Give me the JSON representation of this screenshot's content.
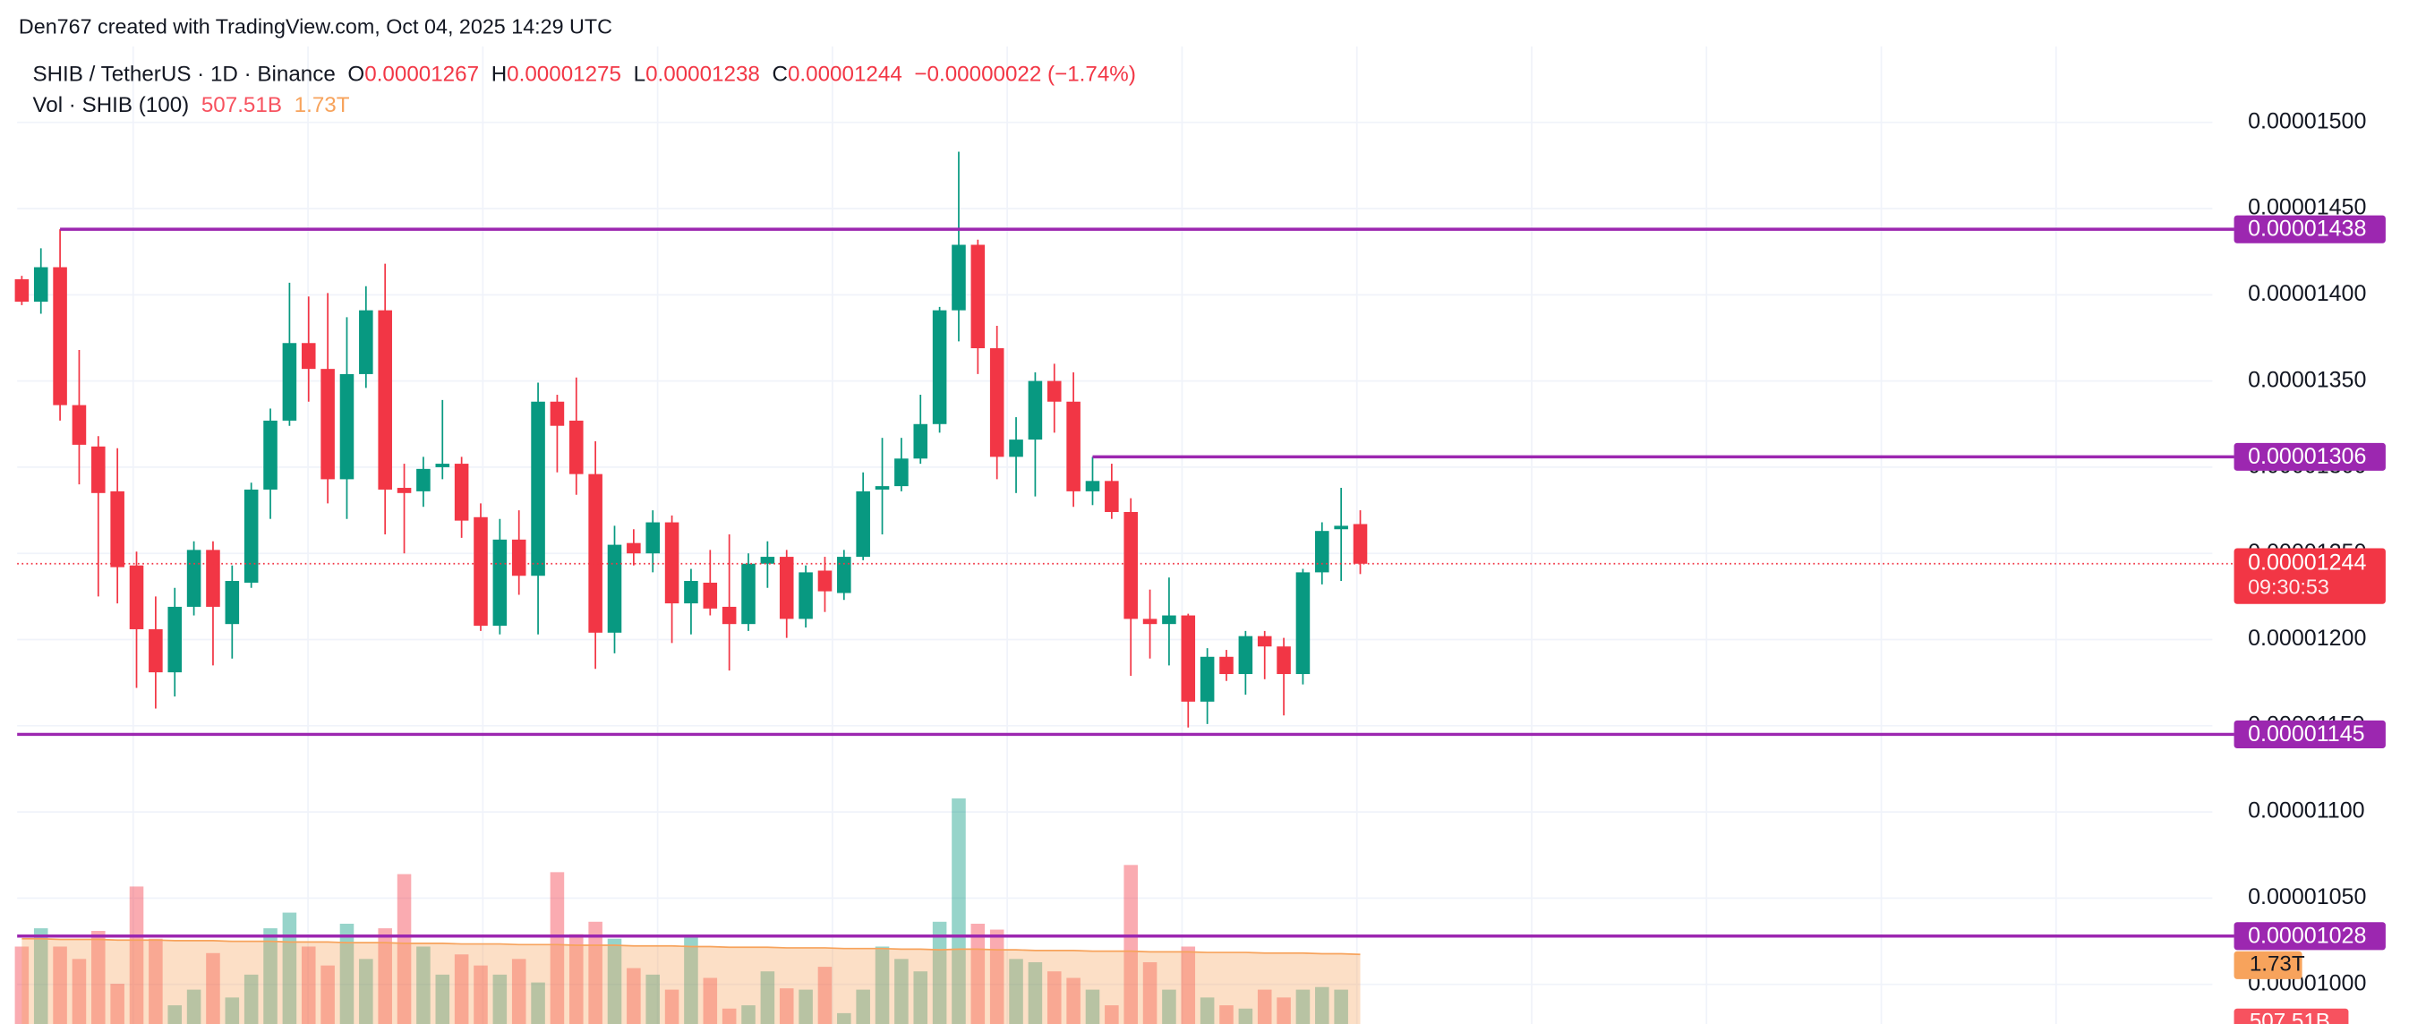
{
  "header": "Den767 created with TradingView.com, Oct 04, 2025 14:29 UTC",
  "chart_data": {
    "type": "candlestick",
    "legend": {
      "symbol": "SHIB / TetherUS · 1D · Binance",
      "open_label": "O",
      "high_label": "H",
      "low_label": "L",
      "close_label": "C",
      "change": "−0.00000022 (−1.74%)",
      "volume_title": "Vol · SHIB (100)"
    },
    "up_color": "#089981",
    "down_color": "#f23645",
    "open": [
      1.409e-05,
      1.396e-05,
      1.416e-05,
      1.336e-05,
      1.312e-05,
      1.286e-05,
      1.243e-05,
      1.206e-05,
      1.181e-05,
      1.219e-05,
      1.252e-05,
      1.209e-05,
      1.233e-05,
      1.287e-05,
      1.327e-05,
      1.372e-05,
      1.357e-05,
      1.293e-05,
      1.354e-05,
      1.391e-05,
      1.288e-05,
      1.286e-05,
      1.3e-05,
      1.302e-05,
      1.271e-05,
      1.208e-05,
      1.258e-05,
      1.237e-05,
      1.338e-05,
      1.327e-05,
      1.296e-05,
      1.204e-05,
      1.256e-05,
      1.25e-05,
      1.268e-05,
      1.221e-05,
      1.233e-05,
      1.219e-05,
      1.209e-05,
      1.244e-05,
      1.248e-05,
      1.212e-05,
      1.24e-05,
      1.227e-05,
      1.248e-05,
      1.287e-05,
      1.289e-05,
      1.305e-05,
      1.325e-05,
      1.391e-05,
      1.429e-05,
      1.369e-05,
      1.306e-05,
      1.316e-05,
      1.35e-05,
      1.338e-05,
      1.286e-05,
      1.292e-05,
      1.274e-05,
      1.212e-05,
      1.209e-05,
      1.214e-05,
      1.164e-05,
      1.19e-05,
      1.18e-05,
      1.202e-05,
      1.196e-05,
      1.18e-05,
      1.239e-05,
      1.264e-05,
      1.267e-05
    ],
    "high": [
      1.411e-05,
      1.427e-05,
      1.438e-05,
      1.368e-05,
      1.318e-05,
      1.311e-05,
      1.251e-05,
      1.225e-05,
      1.23e-05,
      1.257e-05,
      1.257e-05,
      1.243e-05,
      1.291e-05,
      1.334e-05,
      1.407e-05,
      1.399e-05,
      1.401e-05,
      1.387e-05,
      1.405e-05,
      1.418e-05,
      1.302e-05,
      1.306e-05,
      1.339e-05,
      1.306e-05,
      1.279e-05,
      1.27e-05,
      1.275e-05,
      1.349e-05,
      1.342e-05,
      1.352e-05,
      1.315e-05,
      1.266e-05,
      1.264e-05,
      1.275e-05,
      1.272e-05,
      1.241e-05,
      1.252e-05,
      1.261e-05,
      1.25e-05,
      1.257e-05,
      1.252e-05,
      1.243e-05,
      1.248e-05,
      1.252e-05,
      1.297e-05,
      1.317e-05,
      1.317e-05,
      1.342e-05,
      1.393e-05,
      1.483e-05,
      1.432e-05,
      1.382e-05,
      1.329e-05,
      1.355e-05,
      1.36e-05,
      1.355e-05,
      1.306e-05,
      1.302e-05,
      1.282e-05,
      1.229e-05,
      1.236e-05,
      1.215e-05,
      1.195e-05,
      1.194e-05,
      1.205e-05,
      1.205e-05,
      1.201e-05,
      1.241e-05,
      1.268e-05,
      1.288e-05,
      1.275e-05
    ],
    "low": [
      1.394e-05,
      1.389e-05,
      1.327e-05,
      1.29e-05,
      1.225e-05,
      1.221e-05,
      1.172e-05,
      1.16e-05,
      1.167e-05,
      1.214e-05,
      1.185e-05,
      1.189e-05,
      1.23e-05,
      1.27e-05,
      1.324e-05,
      1.338e-05,
      1.279e-05,
      1.27e-05,
      1.346e-05,
      1.261e-05,
      1.25e-05,
      1.277e-05,
      1.293e-05,
      1.259e-05,
      1.205e-05,
      1.203e-05,
      1.226e-05,
      1.203e-05,
      1.297e-05,
      1.284e-05,
      1.183e-05,
      1.192e-05,
      1.243e-05,
      1.239e-05,
      1.198e-05,
      1.203e-05,
      1.214e-05,
      1.182e-05,
      1.205e-05,
      1.23e-05,
      1.201e-05,
      1.207e-05,
      1.216e-05,
      1.223e-05,
      1.246e-05,
      1.261e-05,
      1.286e-05,
      1.302e-05,
      1.32e-05,
      1.373e-05,
      1.354e-05,
      1.293e-05,
      1.285e-05,
      1.283e-05,
      1.32e-05,
      1.277e-05,
      1.278e-05,
      1.27e-05,
      1.179e-05,
      1.189e-05,
      1.185e-05,
      1.149e-05,
      1.151e-05,
      1.176e-05,
      1.168e-05,
      1.177e-05,
      1.156e-05,
      1.174e-05,
      1.232e-05,
      1.234e-05,
      1.238e-05
    ],
    "close": [
      1.396e-05,
      1.416e-05,
      1.336e-05,
      1.313e-05,
      1.285e-05,
      1.242e-05,
      1.206e-05,
      1.181e-05,
      1.219e-05,
      1.252e-05,
      1.219e-05,
      1.234e-05,
      1.287e-05,
      1.327e-05,
      1.372e-05,
      1.357e-05,
      1.293e-05,
      1.354e-05,
      1.391e-05,
      1.287e-05,
      1.285e-05,
      1.299e-05,
      1.302e-05,
      1.269e-05,
      1.208e-05,
      1.258e-05,
      1.237e-05,
      1.338e-05,
      1.324e-05,
      1.296e-05,
      1.204e-05,
      1.255e-05,
      1.25e-05,
      1.268e-05,
      1.221e-05,
      1.234e-05,
      1.218e-05,
      1.209e-05,
      1.244e-05,
      1.248e-05,
      1.212e-05,
      1.239e-05,
      1.228e-05,
      1.248e-05,
      1.286e-05,
      1.289e-05,
      1.305e-05,
      1.325e-05,
      1.391e-05,
      1.429e-05,
      1.369e-05,
      1.306e-05,
      1.316e-05,
      1.35e-05,
      1.338e-05,
      1.286e-05,
      1.292e-05,
      1.274e-05,
      1.212e-05,
      1.209e-05,
      1.214e-05,
      1.164e-05,
      1.19e-05,
      1.18e-05,
      1.202e-05,
      1.196e-05,
      1.18e-05,
      1.239e-05,
      1.263e-05,
      1.266e-05,
      1.244e-05
    ],
    "countdown": "09:30:53",
    "volume": {
      "values": [
        1850000000000.0,
        2130000000000.0,
        1850000000000.0,
        1660000000000.0,
        2090000000000.0,
        1280000000000.0,
        2770000000000.0,
        1970000000000.0,
        950000000000.0,
        1190000000000.0,
        1750000000000.0,
        1070000000000.0,
        1420000000000.0,
        2130000000000.0,
        2370000000000.0,
        1850000000000.0,
        1560000000000.0,
        2200000000000.0,
        1660000000000.0,
        2130000000000.0,
        2960000000000.0,
        1850000000000.0,
        1420000000000.0,
        1730000000000.0,
        1560000000000.0,
        1420000000000.0,
        1660000000000.0,
        1300000000000.0,
        2990000000000.0,
        2040000000000.0,
        2230000000000.0,
        1970000000000.0,
        1520000000000.0,
        1420000000000.0,
        1190000000000.0,
        1990000000000.0,
        1370000000000.0,
        900000000000.0,
        950000000000.0,
        1470000000000.0,
        1210000000000.0,
        1190000000000.0,
        1540000000000.0,
        830000000000.0,
        1190000000000.0,
        1850000000000.0,
        1660000000000.0,
        1470000000000.0,
        2230000000000.0,
        4120000000000.0,
        2200000000000.0,
        2110000000000.0,
        1660000000000.0,
        1610000000000.0,
        1470000000000.0,
        1370000000000.0,
        1190000000000.0,
        950000000000.0,
        3100000000000.0,
        1610000000000.0,
        1190000000000.0,
        1850000000000.0,
        1070000000000.0,
        950000000000.0,
        900000000000.0,
        1190000000000.0,
        1070000000000.0,
        1190000000000.0,
        1230000000000.0,
        1190000000000.0,
        507510000000.0
      ],
      "last_label": "507.51B"
    },
    "volume_ma": {
      "color": "#f7a35c",
      "values": [
        1970000000000.0,
        1970000000000.0,
        1960000000000.0,
        1960000000000.0,
        1960000000000.0,
        1950000000000.0,
        1950000000000.0,
        1950000000000.0,
        1940000000000.0,
        1940000000000.0,
        1940000000000.0,
        1930000000000.0,
        1930000000000.0,
        1930000000000.0,
        1920000000000.0,
        1920000000000.0,
        1920000000000.0,
        1910000000000.0,
        1910000000000.0,
        1910000000000.0,
        1900000000000.0,
        1900000000000.0,
        1900000000000.0,
        1890000000000.0,
        1890000000000.0,
        1890000000000.0,
        1880000000000.0,
        1880000000000.0,
        1880000000000.0,
        1870000000000.0,
        1870000000000.0,
        1870000000000.0,
        1860000000000.0,
        1860000000000.0,
        1860000000000.0,
        1850000000000.0,
        1850000000000.0,
        1840000000000.0,
        1840000000000.0,
        1840000000000.0,
        1830000000000.0,
        1830000000000.0,
        1830000000000.0,
        1820000000000.0,
        1820000000000.0,
        1820000000000.0,
        1810000000000.0,
        1810000000000.0,
        1800000000000.0,
        1810000000000.0,
        1810000000000.0,
        1800000000000.0,
        1800000000000.0,
        1790000000000.0,
        1790000000000.0,
        1790000000000.0,
        1780000000000.0,
        1780000000000.0,
        1780000000000.0,
        1770000000000.0,
        1770000000000.0,
        1770000000000.0,
        1760000000000.0,
        1760000000000.0,
        1760000000000.0,
        1750000000000.0,
        1750000000000.0,
        1750000000000.0,
        1740000000000.0,
        1740000000000.0,
        1730000000000.0
      ],
      "last_label": "1.73T"
    },
    "hlines": [
      {
        "value": 1.438e-05,
        "from_index": 2,
        "color": "#9c27b0"
      },
      {
        "value": 1.306e-05,
        "from_index": 56,
        "color": "#9c27b0"
      },
      {
        "value": 1.145e-05,
        "from_index": 0,
        "color": "#9c27b0"
      },
      {
        "value": 1.028e-05,
        "from_index": 0,
        "color": "#9c27b0"
      }
    ],
    "ylim": [
      9.77e-06,
      1.571e-05
    ],
    "yticks": [
      {
        "value": 1e-05,
        "label": "0.00001000"
      },
      {
        "value": 1.05e-05,
        "label": "0.00001050"
      },
      {
        "value": 1.1e-05,
        "label": "0.00001100"
      },
      {
        "value": 1.15e-05,
        "label": "0.00001150"
      },
      {
        "value": 1.2e-05,
        "label": "0.00001200"
      },
      {
        "value": 1.25e-05,
        "label": "0.00001250"
      },
      {
        "value": 1.3e-05,
        "label": "0.00001300"
      },
      {
        "value": 1.35e-05,
        "label": "0.00001350"
      },
      {
        "value": 1.4e-05,
        "label": "0.00001400"
      },
      {
        "value": 1.45e-05,
        "label": "0.00001450"
      },
      {
        "value": 1.5e-05,
        "label": "0.00001500"
      }
    ],
    "grid": true
  }
}
